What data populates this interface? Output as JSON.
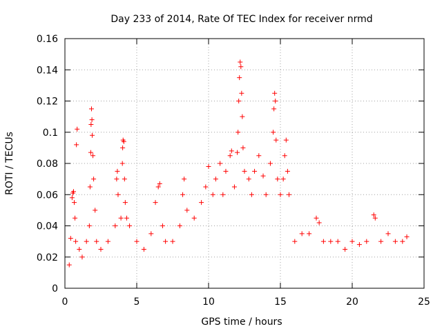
{
  "chart_data": {
    "type": "scatter",
    "title": "Day 233 of 2014, Rate Of TEC Index for receiver nrmd",
    "xlabel": "GPS time / hours",
    "ylabel": "ROTI / TECUs",
    "xlim": [
      0,
      25
    ],
    "ylim": [
      0,
      0.16
    ],
    "xticks": [
      0,
      5,
      10,
      15,
      20,
      25
    ],
    "xtick_labels": [
      "0",
      "5",
      "10",
      "15",
      "20",
      "25"
    ],
    "yticks": [
      0,
      0.02,
      0.04,
      0.06,
      0.08,
      0.1,
      0.12,
      0.14,
      0.16
    ],
    "ytick_labels": [
      "0",
      "0.02",
      "0.04",
      "0.06",
      "0.08",
      "0.1",
      "0.12",
      "0.14",
      "0.16"
    ],
    "grid": true,
    "marker": "plus",
    "series": [
      {
        "name": "ROTI",
        "color": "#ff0000",
        "points": [
          [
            0.3,
            0.015
          ],
          [
            0.4,
            0.032
          ],
          [
            0.5,
            0.058
          ],
          [
            0.55,
            0.061
          ],
          [
            0.6,
            0.062
          ],
          [
            0.65,
            0.055
          ],
          [
            0.7,
            0.045
          ],
          [
            0.75,
            0.03
          ],
          [
            0.8,
            0.092
          ],
          [
            0.85,
            0.102
          ],
          [
            1.0,
            0.025
          ],
          [
            1.2,
            0.02
          ],
          [
            1.5,
            0.03
          ],
          [
            1.7,
            0.04
          ],
          [
            1.75,
            0.065
          ],
          [
            1.8,
            0.087
          ],
          [
            1.82,
            0.105
          ],
          [
            1.85,
            0.115
          ],
          [
            1.88,
            0.108
          ],
          [
            1.9,
            0.098
          ],
          [
            1.95,
            0.085
          ],
          [
            2.0,
            0.07
          ],
          [
            2.1,
            0.05
          ],
          [
            2.2,
            0.03
          ],
          [
            2.5,
            0.025
          ],
          [
            3.0,
            0.03
          ],
          [
            3.5,
            0.04
          ],
          [
            3.6,
            0.07
          ],
          [
            3.65,
            0.075
          ],
          [
            3.7,
            0.06
          ],
          [
            3.9,
            0.045
          ],
          [
            4.0,
            0.08
          ],
          [
            4.02,
            0.09
          ],
          [
            4.05,
            0.095
          ],
          [
            4.1,
            0.094
          ],
          [
            4.15,
            0.07
          ],
          [
            4.2,
            0.055
          ],
          [
            4.3,
            0.045
          ],
          [
            4.5,
            0.04
          ],
          [
            5.0,
            0.03
          ],
          [
            5.5,
            0.025
          ],
          [
            6.0,
            0.035
          ],
          [
            6.3,
            0.055
          ],
          [
            6.5,
            0.065
          ],
          [
            6.6,
            0.067
          ],
          [
            6.8,
            0.04
          ],
          [
            7.0,
            0.03
          ],
          [
            7.5,
            0.03
          ],
          [
            8.0,
            0.04
          ],
          [
            8.2,
            0.06
          ],
          [
            8.3,
            0.07
          ],
          [
            8.5,
            0.05
          ],
          [
            9.0,
            0.045
          ],
          [
            9.5,
            0.055
          ],
          [
            9.8,
            0.065
          ],
          [
            10.0,
            0.078
          ],
          [
            10.3,
            0.06
          ],
          [
            10.5,
            0.07
          ],
          [
            10.8,
            0.08
          ],
          [
            11.0,
            0.06
          ],
          [
            11.2,
            0.075
          ],
          [
            11.5,
            0.085
          ],
          [
            11.6,
            0.088
          ],
          [
            11.8,
            0.065
          ],
          [
            12.0,
            0.087
          ],
          [
            12.05,
            0.1
          ],
          [
            12.1,
            0.12
          ],
          [
            12.15,
            0.135
          ],
          [
            12.2,
            0.145
          ],
          [
            12.25,
            0.142
          ],
          [
            12.3,
            0.125
          ],
          [
            12.35,
            0.11
          ],
          [
            12.4,
            0.09
          ],
          [
            12.5,
            0.075
          ],
          [
            12.8,
            0.07
          ],
          [
            13.0,
            0.06
          ],
          [
            13.2,
            0.075
          ],
          [
            13.5,
            0.085
          ],
          [
            13.8,
            0.072
          ],
          [
            14.0,
            0.06
          ],
          [
            14.3,
            0.08
          ],
          [
            14.5,
            0.1
          ],
          [
            14.55,
            0.115
          ],
          [
            14.6,
            0.125
          ],
          [
            14.65,
            0.12
          ],
          [
            14.7,
            0.095
          ],
          [
            14.8,
            0.07
          ],
          [
            15.0,
            0.06
          ],
          [
            15.2,
            0.07
          ],
          [
            15.3,
            0.085
          ],
          [
            15.4,
            0.095
          ],
          [
            15.5,
            0.075
          ],
          [
            15.6,
            0.06
          ],
          [
            16.0,
            0.03
          ],
          [
            16.5,
            0.035
          ],
          [
            17.0,
            0.035
          ],
          [
            17.5,
            0.045
          ],
          [
            17.7,
            0.042
          ],
          [
            18.0,
            0.03
          ],
          [
            18.5,
            0.03
          ],
          [
            19.0,
            0.03
          ],
          [
            19.5,
            0.025
          ],
          [
            20.0,
            0.03
          ],
          [
            20.5,
            0.028
          ],
          [
            21.0,
            0.03
          ],
          [
            21.5,
            0.047
          ],
          [
            21.6,
            0.045
          ],
          [
            22.0,
            0.03
          ],
          [
            22.5,
            0.035
          ],
          [
            23.0,
            0.03
          ],
          [
            23.5,
            0.03
          ],
          [
            23.8,
            0.033
          ]
        ]
      }
    ]
  }
}
